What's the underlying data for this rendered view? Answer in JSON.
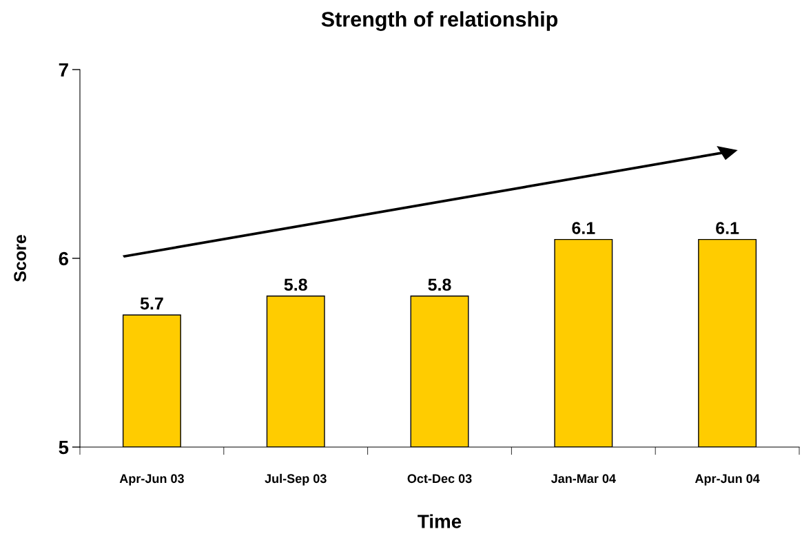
{
  "chart_data": {
    "type": "bar",
    "title": "Strength of relationship",
    "xlabel": "Time",
    "ylabel": "Score",
    "categories": [
      "Apr-Jun 03",
      "Jul-Sep 03",
      "Oct-Dec 03",
      "Jan-Mar 04",
      "Apr-Jun 04"
    ],
    "values": [
      5.7,
      5.8,
      5.8,
      6.1,
      6.1
    ],
    "color": "#ffcc00",
    "ylim": [
      5,
      7
    ],
    "yticks": [
      5,
      6,
      7
    ],
    "grid": false,
    "data_labels": true
  }
}
